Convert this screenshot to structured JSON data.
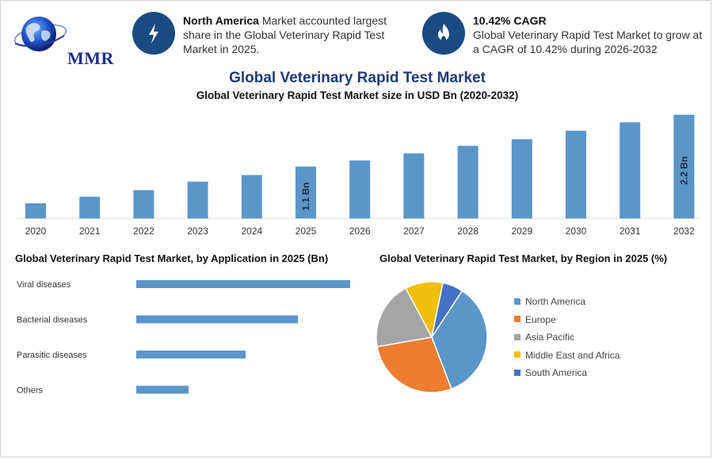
{
  "logo": {
    "text": "MMR",
    "icon": "globe-icon"
  },
  "highlights": [
    {
      "icon": "lightning-icon",
      "bold": "North America",
      "text": " Market accounted largest share in the Global Veterinary Rapid Test Market in 2025."
    },
    {
      "icon": "flame-icon",
      "bold": "10.42% CAGR",
      "text": "Global Veterinary Rapid Test Market to grow at a CAGR of 10.42% during 2026-2032"
    }
  ],
  "header": {
    "title": "Global Veterinary Rapid Test Market",
    "subtitle": "Global Veterinary Rapid Test Market size in USD Bn (2020-2032)"
  },
  "chart_data": [
    {
      "type": "bar",
      "categories": [
        "2020",
        "2021",
        "2022",
        "2023",
        "2024",
        "2025",
        "2026",
        "2027",
        "2028",
        "2029",
        "2030",
        "2031",
        "2032"
      ],
      "values": [
        0.32,
        0.46,
        0.6,
        0.78,
        0.92,
        1.1,
        1.23,
        1.38,
        1.54,
        1.68,
        1.86,
        2.04,
        2.2
      ],
      "data_labels": [
        {
          "category": "2025",
          "text": "1.1 Bn"
        },
        {
          "category": "2032",
          "text": "2.2 Bn"
        }
      ],
      "color": "#5b96c9"
    },
    {
      "type": "bar",
      "orientation": "horizontal",
      "title": "Global Veterinary Rapid Test Market, by Application in 2025 (Bn)",
      "categories": [
        "Viral diseases",
        "Bacterial diseases",
        "Parasitic diseases",
        "Others"
      ],
      "values": [
        0.45,
        0.34,
        0.23,
        0.11
      ],
      "color": "#5b96c9"
    },
    {
      "type": "pie",
      "title": "Global Veterinary Rapid Test Market, by Region in 2025 (%)",
      "labels": [
        "North America",
        "Europe",
        "Asia Pacific",
        "Middle East and Africa",
        "South America"
      ],
      "values": [
        35,
        28,
        20,
        11,
        6
      ],
      "colors": [
        "#5b96c9",
        "#ed7d31",
        "#a5a5a5",
        "#f2c00c",
        "#4472c4"
      ],
      "legend": "right"
    }
  ]
}
